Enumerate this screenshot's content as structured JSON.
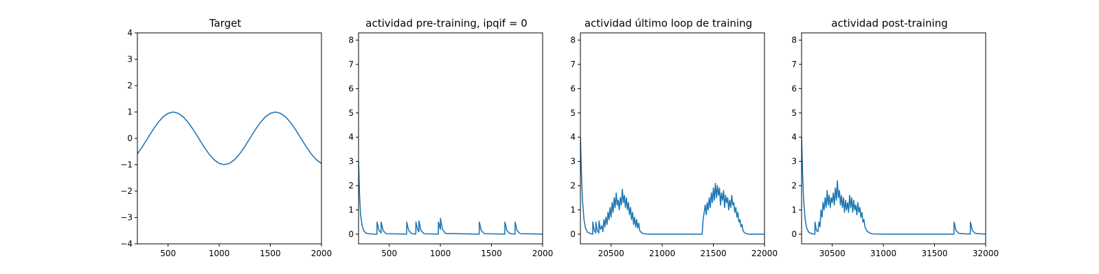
{
  "colors": {
    "series": "#1f77b4",
    "axes": "#000000",
    "background": "#ffffff"
  },
  "chart_data": [
    {
      "type": "line",
      "title": "Target",
      "xlim": [
        200,
        2000
      ],
      "ylim": [
        -4,
        4
      ],
      "xticks": [
        500,
        1000,
        1500,
        2000
      ],
      "yticks": [
        -4,
        -3,
        -2,
        -1,
        0,
        1,
        2,
        3,
        4
      ],
      "xtick_labels": [
        "500",
        "1000",
        "1500",
        "2000"
      ],
      "ytick_labels": [
        "−4",
        "−3",
        "−2",
        "−1",
        "0",
        "1",
        "2",
        "3",
        "4"
      ],
      "series": [
        {
          "x": [
            200,
            250,
            300,
            350,
            400,
            450,
            500,
            550,
            600,
            650,
            700,
            750,
            800,
            850,
            900,
            950,
            1000,
            1050,
            1100,
            1150,
            1200,
            1250,
            1300,
            1350,
            1400,
            1450,
            1500,
            1550,
            1600,
            1650,
            1700,
            1750,
            1800,
            1850,
            1900,
            1950,
            2000
          ],
          "y": [
            -0.59,
            -0.31,
            0.0,
            0.31,
            0.59,
            0.81,
            0.95,
            1.0,
            0.95,
            0.81,
            0.59,
            0.31,
            0.0,
            -0.31,
            -0.59,
            -0.81,
            -0.95,
            -1.0,
            -0.95,
            -0.81,
            -0.59,
            -0.31,
            0.0,
            0.31,
            0.59,
            0.81,
            0.95,
            1.0,
            0.95,
            0.81,
            0.59,
            0.31,
            0.0,
            -0.31,
            -0.59,
            -0.81,
            -0.95
          ]
        }
      ]
    },
    {
      "type": "line",
      "title": "actividad pre-training, ipqif = 0",
      "xlim": [
        200,
        2000
      ],
      "ylim": [
        -0.4,
        8.3
      ],
      "xticks": [
        500,
        1000,
        1500,
        2000
      ],
      "yticks": [
        0,
        1,
        2,
        3,
        4,
        5,
        6,
        7,
        8
      ],
      "xtick_labels": [
        "500",
        "1000",
        "1500",
        "2000"
      ],
      "ytick_labels": [
        "0",
        "1",
        "2",
        "3",
        "4",
        "5",
        "6",
        "7",
        "8"
      ],
      "series": [
        {
          "x": [
            200,
            210,
            220,
            235,
            250,
            270,
            300,
            350,
            380,
            381,
            400,
            420,
            421,
            440,
            470,
            670,
            671,
            690,
            720,
            760,
            761,
            780,
            790,
            791,
            810,
            840,
            980,
            981,
            1000,
            1001,
            1020,
            1050,
            1380,
            1381,
            1400,
            1430,
            1630,
            1631,
            1650,
            1680,
            1730,
            1731,
            1750,
            1780,
            2000
          ],
          "y": [
            3.0,
            1.6,
            0.8,
            0.35,
            0.15,
            0.05,
            0.02,
            0.0,
            0.0,
            0.5,
            0.15,
            0.05,
            0.5,
            0.15,
            0.02,
            0.0,
            0.5,
            0.15,
            0.02,
            0.0,
            0.5,
            0.15,
            0.1,
            0.55,
            0.15,
            0.02,
            0.0,
            0.5,
            0.2,
            0.65,
            0.2,
            0.03,
            0.0,
            0.5,
            0.15,
            0.02,
            0.0,
            0.5,
            0.15,
            0.02,
            0.0,
            0.5,
            0.15,
            0.02,
            0.0
          ]
        }
      ]
    },
    {
      "type": "line",
      "title": "actividad último loop de training",
      "xlim": [
        20200,
        22000
      ],
      "ylim": [
        -0.4,
        8.3
      ],
      "xticks": [
        20500,
        21000,
        21500,
        22000
      ],
      "yticks": [
        0,
        1,
        2,
        3,
        4,
        5,
        6,
        7,
        8
      ],
      "xtick_labels": [
        "20500",
        "21000",
        "21500",
        "22000"
      ],
      "ytick_labels": [
        "0",
        "1",
        "2",
        "3",
        "4",
        "5",
        "6",
        "7",
        "8"
      ],
      "series": [
        {
          "x": [
            20200,
            20210,
            20220,
            20235,
            20250,
            20270,
            20300,
            20320,
            20321,
            20335,
            20350,
            20351,
            20365,
            20380,
            20381,
            20395,
            20410,
            20420,
            20430,
            20440,
            20450,
            20460,
            20470,
            20480,
            20490,
            20500,
            20510,
            20520,
            20530,
            20540,
            20550,
            20560,
            20570,
            20580,
            20590,
            20600,
            20610,
            20620,
            20630,
            20640,
            20650,
            20660,
            20670,
            20680,
            20690,
            20700,
            20710,
            20720,
            20730,
            20740,
            20750,
            20760,
            20770,
            20780,
            20800,
            20820,
            20850,
            20900,
            21000,
            21200,
            21390,
            21400,
            21410,
            21420,
            21430,
            21440,
            21450,
            21460,
            21470,
            21480,
            21490,
            21500,
            21510,
            21520,
            21530,
            21540,
            21550,
            21560,
            21570,
            21580,
            21590,
            21600,
            21610,
            21620,
            21630,
            21640,
            21650,
            21660,
            21670,
            21680,
            21690,
            21700,
            21710,
            21720,
            21730,
            21740,
            21750,
            21760,
            21770,
            21780,
            21790,
            21800,
            21820,
            21850,
            21900,
            22000
          ],
          "y": [
            4.0,
            2.5,
            1.4,
            0.6,
            0.25,
            0.08,
            0.02,
            0.0,
            0.5,
            0.15,
            0.05,
            0.5,
            0.15,
            0.05,
            0.55,
            0.2,
            0.35,
            0.1,
            0.6,
            0.3,
            0.7,
            0.4,
            0.9,
            0.6,
            1.1,
            0.7,
            1.3,
            0.9,
            1.5,
            1.1,
            1.7,
            1.2,
            1.4,
            1.0,
            1.5,
            1.2,
            1.85,
            1.3,
            1.6,
            1.1,
            1.5,
            1.0,
            1.3,
            0.8,
            1.1,
            0.6,
            0.9,
            0.4,
            0.7,
            0.3,
            0.6,
            0.25,
            0.45,
            0.15,
            0.05,
            0.02,
            0.0,
            0.0,
            0.0,
            0.0,
            0.0,
            0.6,
            0.9,
            1.2,
            0.8,
            1.3,
            1.0,
            1.5,
            1.1,
            1.7,
            1.3,
            1.9,
            1.4,
            2.1,
            1.5,
            2.0,
            1.6,
            1.9,
            1.2,
            1.7,
            1.4,
            1.8,
            1.1,
            1.6,
            1.3,
            1.5,
            1.0,
            1.4,
            1.1,
            1.6,
            1.2,
            1.3,
            0.9,
            1.1,
            0.7,
            0.9,
            0.5,
            0.6,
            0.3,
            0.4,
            0.15,
            0.08,
            0.02,
            0.0,
            0.0,
            0.0
          ]
        }
      ]
    },
    {
      "type": "line",
      "title": "actividad post-training",
      "xlim": [
        30200,
        32000
      ],
      "ylim": [
        -0.4,
        8.3
      ],
      "xticks": [
        30500,
        31000,
        31500,
        32000
      ],
      "yticks": [
        0,
        1,
        2,
        3,
        4,
        5,
        6,
        7,
        8
      ],
      "xtick_labels": [
        "30500",
        "31000",
        "31500",
        "32000"
      ],
      "ytick_labels": [
        "0",
        "1",
        "2",
        "3",
        "4",
        "5",
        "6",
        "7",
        "8"
      ],
      "series": [
        {
          "x": [
            30200,
            30210,
            30220,
            30235,
            30250,
            30270,
            30300,
            30320,
            30330,
            30331,
            30345,
            30360,
            30370,
            30380,
            30390,
            30400,
            30410,
            30420,
            30430,
            30440,
            30450,
            30460,
            30470,
            30480,
            30490,
            30500,
            30510,
            30520,
            30530,
            30540,
            30550,
            30560,
            30570,
            30580,
            30590,
            30600,
            30610,
            30620,
            30630,
            30640,
            30650,
            30660,
            30670,
            30680,
            30690,
            30700,
            30710,
            30720,
            30730,
            30740,
            30750,
            30760,
            30770,
            30780,
            30790,
            30800,
            30810,
            30820,
            30840,
            30870,
            30900,
            31000,
            31200,
            31690,
            31691,
            31710,
            31740,
            31850,
            31851,
            31870,
            31900,
            32000
          ],
          "y": [
            4.0,
            2.5,
            1.4,
            0.6,
            0.25,
            0.08,
            0.02,
            0.0,
            0.0,
            0.5,
            0.15,
            0.1,
            0.5,
            0.3,
            1.0,
            0.7,
            1.3,
            1.0,
            1.5,
            1.1,
            1.8,
            1.2,
            1.6,
            1.1,
            1.5,
            1.3,
            1.7,
            1.2,
            1.9,
            1.4,
            2.2,
            1.5,
            1.8,
            1.2,
            1.6,
            1.1,
            1.5,
            0.9,
            1.4,
            1.0,
            1.3,
            0.9,
            1.6,
            1.1,
            1.5,
            0.9,
            1.4,
            1.0,
            1.2,
            0.8,
            1.3,
            0.9,
            1.1,
            0.7,
            0.9,
            0.5,
            0.6,
            0.3,
            0.12,
            0.04,
            0.01,
            0.0,
            0.0,
            0.0,
            0.5,
            0.15,
            0.03,
            0.0,
            0.5,
            0.15,
            0.03,
            0.0
          ]
        }
      ]
    }
  ]
}
